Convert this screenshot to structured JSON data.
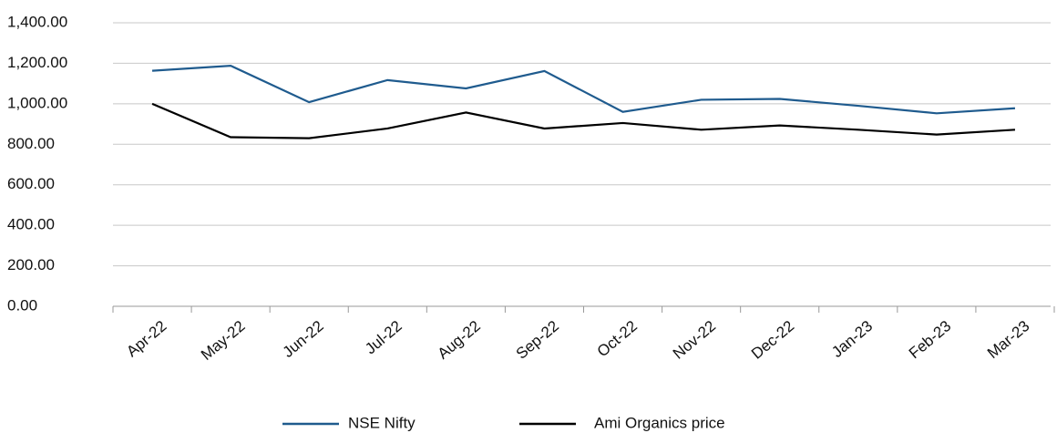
{
  "chart_data": {
    "type": "line",
    "categories": [
      "Apr-22",
      "May-22",
      "Jun-22",
      "Jul-22",
      "Aug-22",
      "Sep-22",
      "Oct-22",
      "Nov-22",
      "Dec-22",
      "Jan-23",
      "Feb-23",
      "Mar-23"
    ],
    "series": [
      {
        "name": "NSE Nifty",
        "color": "#1f5b8e",
        "values": [
          1163,
          1188,
          1008,
          1117,
          1076,
          1162,
          960,
          1020,
          1024,
          990,
          953,
          978
        ]
      },
      {
        "name": "Ami Organics price",
        "color": "#000000",
        "values": [
          1000,
          835,
          830,
          878,
          957,
          878,
          905,
          872,
          893,
          872,
          848,
          872
        ]
      }
    ],
    "ylim": [
      0,
      1400
    ],
    "yticks": [
      {
        "value": 0,
        "label": "0.00"
      },
      {
        "value": 200,
        "label": "200.00"
      },
      {
        "value": 400,
        "label": "400.00"
      },
      {
        "value": 600,
        "label": "600.00"
      },
      {
        "value": 800,
        "label": "800.00"
      },
      {
        "value": 1000,
        "label": "1,000.00"
      },
      {
        "value": 1200,
        "label": "1,200.00"
      },
      {
        "value": 1400,
        "label": "1,400.00"
      }
    ],
    "grid": true,
    "legend": "bottom"
  }
}
